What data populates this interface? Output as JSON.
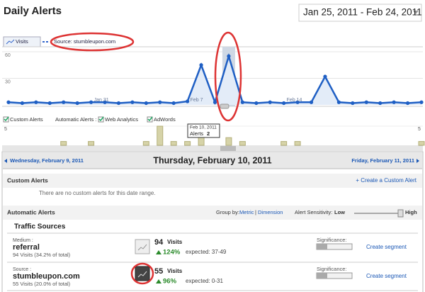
{
  "header": {
    "title": "Daily Alerts",
    "date_range": "Jan 25, 2011 - Feb 24, 2011"
  },
  "chart": {
    "tab": "Visits",
    "segment": "Source: stumbleupon.com",
    "ylim": [
      0,
      60
    ],
    "yticks": [
      30,
      60
    ],
    "x_labels": [
      {
        "index": 6,
        "label": "Jan 31"
      },
      {
        "index": 13,
        "label": "Feb 7"
      },
      {
        "index": 20,
        "label": "Feb 14"
      }
    ],
    "selected_index": 16,
    "values": [
      3,
      2,
      3,
      2,
      3,
      2,
      3,
      3,
      2,
      3,
      2,
      3,
      2,
      4,
      45,
      3,
      55,
      3,
      2,
      3,
      2,
      3,
      3,
      32,
      3,
      2,
      3,
      2,
      3,
      2,
      3
    ]
  },
  "alerts_strip": {
    "legend": [
      "Custom Alerts",
      "Automatic Alerts :",
      "Web Analytics",
      "AdWords"
    ],
    "ylim": [
      0,
      5
    ],
    "yticks": [
      5
    ],
    "values": [
      0,
      0,
      0,
      0,
      1,
      0,
      1,
      0,
      0,
      0,
      1,
      5,
      1,
      1,
      5,
      0,
      2,
      1,
      0,
      0,
      1,
      1,
      0,
      0,
      0,
      0,
      0,
      0,
      0,
      0,
      1
    ],
    "tooltip": {
      "date": "Feb 10, 2011",
      "label": "Alerts",
      "value": 2
    }
  },
  "nav": {
    "prev": "Wednesday, February 9, 2011",
    "current": "Thursday, February 10, 2011",
    "next": "Friday, February 11, 2011"
  },
  "custom_alerts": {
    "title": "Custom Alerts",
    "create": "+ Create a Custom Alert",
    "empty": "There are no custom alerts for this date range."
  },
  "automatic_alerts": {
    "title": "Automatic Alerts",
    "group_by": "Group by:",
    "metric": "Metric",
    "dimension": "Dimension",
    "sensitivity": "Alert Sensitivity:",
    "low": "Low",
    "high": "High",
    "section": "Traffic Sources",
    "rows": [
      {
        "dim_label": "Medium :",
        "dim_value": "referral",
        "total": "94 Visits (34.2% of total)",
        "visits": 94,
        "unit": "Visits",
        "change": "124%",
        "expected": "expected: 37-49",
        "significance_label": "Significance:",
        "significance": 0.3,
        "action": "Create segment"
      },
      {
        "dim_label": "Source :",
        "dim_value": "stumbleupon.com",
        "total": "55 Visits (20.0% of total)",
        "visits": 55,
        "unit": "Visits",
        "change": "96%",
        "expected": "expected: 0-31",
        "significance_label": "Significance:",
        "significance": 0.3,
        "action": "Create segment"
      }
    ]
  }
}
